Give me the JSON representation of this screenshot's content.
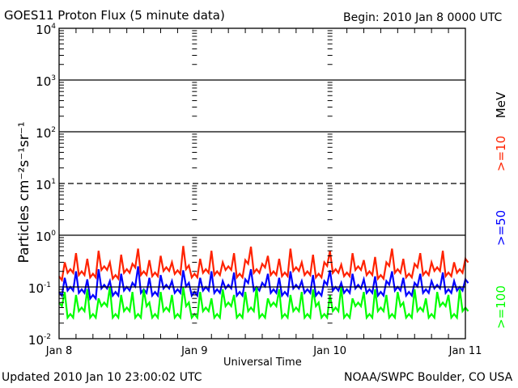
{
  "chart_data": {
    "type": "line",
    "title": "GOES11 Proton Flux (5 minute data)",
    "begin_label": "Begin: 2010 Jan 8 0000 UTC",
    "xlabel": "Universal Time",
    "ylabel": "Particles cm⁻²s⁻¹sr⁻¹",
    "yscale": "log",
    "ylim": [
      0.01,
      10000
    ],
    "y_ticks": [
      {
        "base": "10",
        "exp": "-2",
        "value": 0.01
      },
      {
        "base": "10",
        "exp": "-1",
        "value": 0.1
      },
      {
        "base": "10",
        "exp": "0",
        "value": 1
      },
      {
        "base": "10",
        "exp": "1",
        "value": 10
      },
      {
        "base": "10",
        "exp": "2",
        "value": 100
      },
      {
        "base": "10",
        "exp": "3",
        "value": 1000
      },
      {
        "base": "10",
        "exp": "4",
        "value": 10000
      }
    ],
    "x_ticks": [
      "Jan 8",
      "Jan 9",
      "Jan 10",
      "Jan 11"
    ],
    "xlim_hours": [
      0,
      72
    ],
    "grid": "horizontal lines at 1e-1, 1e0, 1e2, 1e3 (solid) and 1e1 (dashed)",
    "legend_placement": "right",
    "legend_unit": "MeV",
    "series": [
      {
        "name": ">=10",
        "color": "#ff2200",
        "values": [
          0.16,
          0.3,
          0.22,
          0.45,
          0.2,
          0.35,
          0.18,
          0.5,
          0.25,
          0.3,
          0.17,
          0.42,
          0.22,
          0.28,
          0.55,
          0.2,
          0.33,
          0.19,
          0.4,
          0.24,
          0.3,
          0.21,
          0.62,
          0.26,
          0.18,
          0.35,
          0.22,
          0.5,
          0.2,
          0.3,
          0.25,
          0.45,
          0.18,
          0.33,
          0.6,
          0.22,
          0.28,
          0.4,
          0.2,
          0.35,
          0.19,
          0.55,
          0.24,
          0.3,
          0.2,
          0.42,
          0.18,
          0.3,
          0.5,
          0.22,
          0.27,
          0.19,
          0.45,
          0.25,
          0.33,
          0.2,
          0.38,
          0.17,
          0.3,
          0.55,
          0.22,
          0.35,
          0.18,
          0.28,
          0.45,
          0.2,
          0.3,
          0.24,
          0.5,
          0.19,
          0.3,
          0.22,
          0.35
        ]
      },
      {
        "name": ">=50",
        "color": "#0000ff",
        "values": [
          0.08,
          0.15,
          0.1,
          0.2,
          0.09,
          0.14,
          0.07,
          0.22,
          0.11,
          0.13,
          0.08,
          0.18,
          0.1,
          0.12,
          0.25,
          0.09,
          0.15,
          0.08,
          0.17,
          0.11,
          0.13,
          0.09,
          0.21,
          0.12,
          0.08,
          0.15,
          0.1,
          0.2,
          0.09,
          0.13,
          0.11,
          0.19,
          0.08,
          0.14,
          0.22,
          0.1,
          0.12,
          0.18,
          0.09,
          0.15,
          0.08,
          0.2,
          0.11,
          0.13,
          0.09,
          0.17,
          0.08,
          0.13,
          0.21,
          0.1,
          0.12,
          0.09,
          0.18,
          0.11,
          0.14,
          0.09,
          0.16,
          0.08,
          0.13,
          0.2,
          0.1,
          0.15,
          0.08,
          0.12,
          0.18,
          0.09,
          0.13,
          0.11,
          0.19,
          0.09,
          0.13,
          0.1,
          0.14
        ]
      },
      {
        "name": ">=100",
        "color": "#00ff00",
        "values": [
          0.05,
          0.08,
          0.03,
          0.07,
          0.04,
          0.09,
          0.03,
          0.06,
          0.05,
          0.1,
          0.03,
          0.07,
          0.04,
          0.08,
          0.03,
          0.09,
          0.05,
          0.03,
          0.08,
          0.04,
          0.07,
          0.03,
          0.1,
          0.05,
          0.03,
          0.08,
          0.04,
          0.06,
          0.03,
          0.09,
          0.05,
          0.07,
          0.03,
          0.08,
          0.04,
          0.1,
          0.03,
          0.06,
          0.05,
          0.09,
          0.03,
          0.07,
          0.04,
          0.08,
          0.03,
          0.09,
          0.05,
          0.03,
          0.07,
          0.04,
          0.1,
          0.03,
          0.06,
          0.05,
          0.08,
          0.03,
          0.09,
          0.04,
          0.07,
          0.03,
          0.08,
          0.05,
          0.03,
          0.09,
          0.04,
          0.06,
          0.03,
          0.08,
          0.05,
          0.07,
          0.03,
          0.09,
          0.04
        ]
      }
    ]
  },
  "footer": {
    "updated": "Updated 2010 Jan 10 23:00:02 UTC",
    "credit": "NOAA/SWPC Boulder, CO USA"
  }
}
